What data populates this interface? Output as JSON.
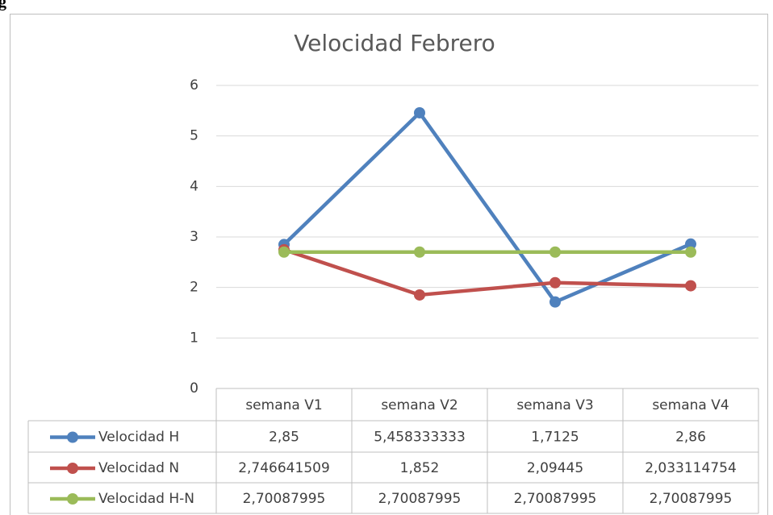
{
  "page_fragment": "g",
  "chart_data": {
    "type": "line",
    "title": "Velocidad Febrero",
    "categories": [
      "semana V1",
      "semana V2",
      "semana V3",
      "semana V4"
    ],
    "series": [
      {
        "name": "Velocidad H",
        "color": "#4f81bd",
        "values": [
          2.85,
          5.458333333,
          1.7125,
          2.86
        ],
        "value_labels": [
          "2,85",
          "5,458333333",
          "1,7125",
          "2,86"
        ]
      },
      {
        "name": "Velocidad N",
        "color": "#c0504d",
        "values": [
          2.746641509,
          1.852,
          2.09445,
          2.033114754
        ],
        "value_labels": [
          "2,746641509",
          "1,852",
          "2,09445",
          "2,033114754"
        ]
      },
      {
        "name": "Velocidad H-N",
        "color": "#9bbb59",
        "values": [
          2.70087995,
          2.70087995,
          2.70087995,
          2.70087995
        ],
        "value_labels": [
          "2,70087995",
          "2,70087995",
          "2,70087995",
          "2,70087995"
        ]
      }
    ],
    "ylim": [
      0,
      6
    ],
    "yticks": [
      0,
      1,
      2,
      3,
      4,
      5,
      6
    ],
    "grid": true,
    "legend": "data-table"
  }
}
